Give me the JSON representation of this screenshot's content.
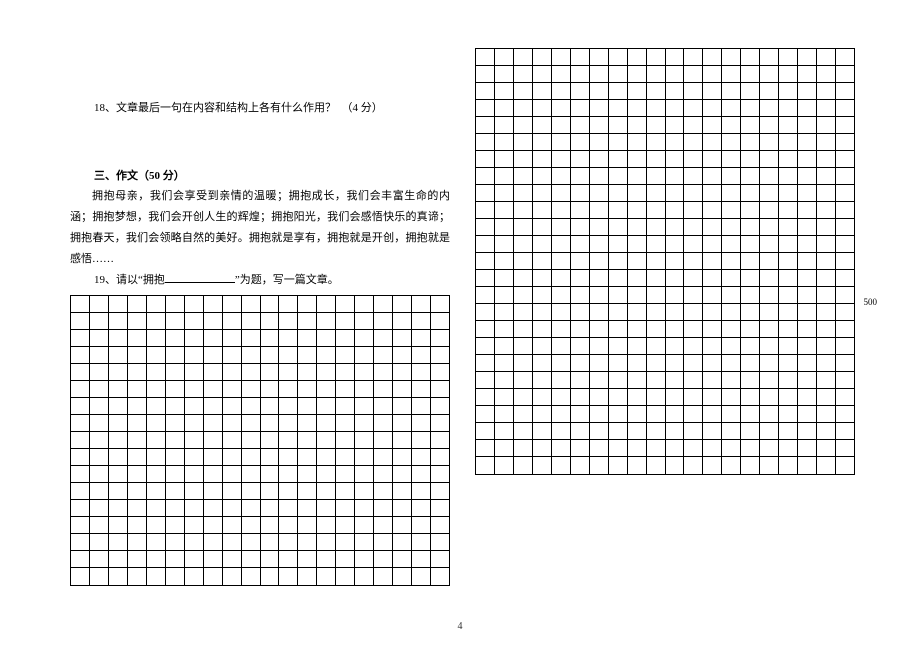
{
  "q18": {
    "text": "18、文章最后一句在内容和结构上各有什么作用？　（4 分）"
  },
  "section3": {
    "title": "三、作文（50 分）",
    "para1": "拥抱母亲，我们会享受到亲情的温暖；拥抱成长，我们会丰富生命的内涵；拥抱梦想，我们会开创人生的辉煌；拥抱阳光，我们会感悟快乐的真谛；拥抱春天，我们会领略自然的美好。拥抱就是享有，拥抱就是开创，拥抱就是感悟……",
    "q19_prefix": "19、请以“拥抱",
    "q19_suffix": "”为题，写一篇文章。"
  },
  "leftGrid": {
    "rows": 17,
    "cols": 20
  },
  "rightGrid": {
    "rows": 25,
    "cols": 20,
    "label500Row": 15,
    "label500Text": "500"
  },
  "pageNumber": "4"
}
